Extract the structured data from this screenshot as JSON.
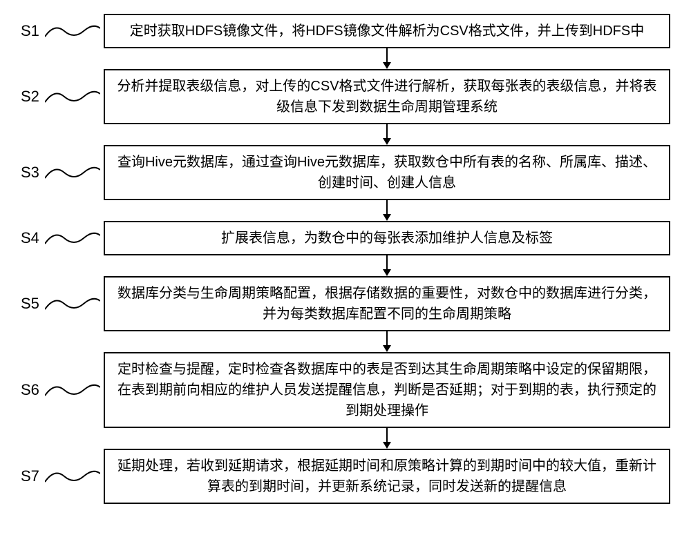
{
  "flowchart": {
    "type": "flowchart",
    "background_color": "#ffffff",
    "border_color": "#000000",
    "text_color": "#000000",
    "arrow_color": "#000000",
    "label_fontsize": 22,
    "box_fontsize": 20,
    "wave_stroke_width": 2,
    "box_border_width": 2,
    "arrow_length": 28,
    "steps": [
      {
        "label": "S1",
        "text": "定时获取HDFS镜像文件，将HDFS镜像文件解析为CSV格式文件，并上传到HDFS中"
      },
      {
        "label": "S2",
        "text": "分析并提取表级信息，对上传的CSV格式文件进行解析，获取每张表的表级信息，并将表级信息下发到数据生命周期管理系统"
      },
      {
        "label": "S3",
        "text": "查询Hive元数据库，通过查询Hive元数据库，获取数仓中所有表的名称、所属库、描述、创建时间、创建人信息"
      },
      {
        "label": "S4",
        "text": "扩展表信息，为数仓中的每张表添加维护人信息及标签"
      },
      {
        "label": "S5",
        "text": "数据库分类与生命周期策略配置，根据存储数据的重要性，对数仓中的数据库进行分类，并为每类数据库配置不同的生命周期策略"
      },
      {
        "label": "S6",
        "text": "定时检查与提醒，定时检查各数据库中的表是否到达其生命周期策略中设定的保留期限，在表到期前向相应的维护人员发送提醒信息，判断是否延期；对于到期的表，执行预定的到期处理操作"
      },
      {
        "label": "S7",
        "text": "延期处理，若收到延期请求，根据延期时间和原策略计算的到期时间中的较大值，重新计算表的到期时间，并更新系统记录，同时发送新的提醒信息"
      }
    ]
  }
}
